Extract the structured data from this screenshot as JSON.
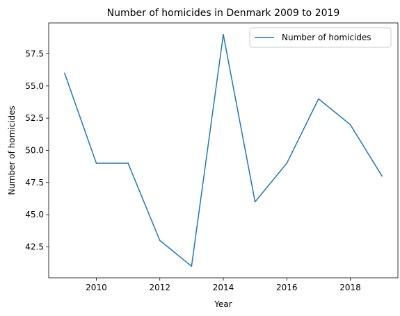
{
  "chart_data": {
    "type": "line",
    "title": "Number of homicides in Denmark 2009 to 2019",
    "xlabel": "Year",
    "ylabel": "Number of homicides",
    "x": [
      2009,
      2010,
      2011,
      2012,
      2013,
      2014,
      2015,
      2016,
      2017,
      2018,
      2019
    ],
    "series": [
      {
        "name": "Number of homicides",
        "color": "#1f77b4",
        "values": [
          56,
          49,
          49,
          43,
          41,
          59,
          46,
          49,
          54,
          52,
          48
        ]
      }
    ],
    "xlim": [
      2008.5,
      2019.5
    ],
    "ylim": [
      40.1,
      59.9
    ],
    "xticks": [
      2010,
      2012,
      2014,
      2016,
      2018
    ],
    "xtick_labels": [
      "2010",
      "2012",
      "2014",
      "2016",
      "2018"
    ],
    "yticks": [
      42.5,
      45.0,
      47.5,
      50.0,
      52.5,
      55.0,
      57.5
    ],
    "ytick_labels": [
      "42.5",
      "45.0",
      "47.5",
      "50.0",
      "52.5",
      "55.0",
      "57.5"
    ],
    "grid": false,
    "legend_position": "top-right"
  }
}
